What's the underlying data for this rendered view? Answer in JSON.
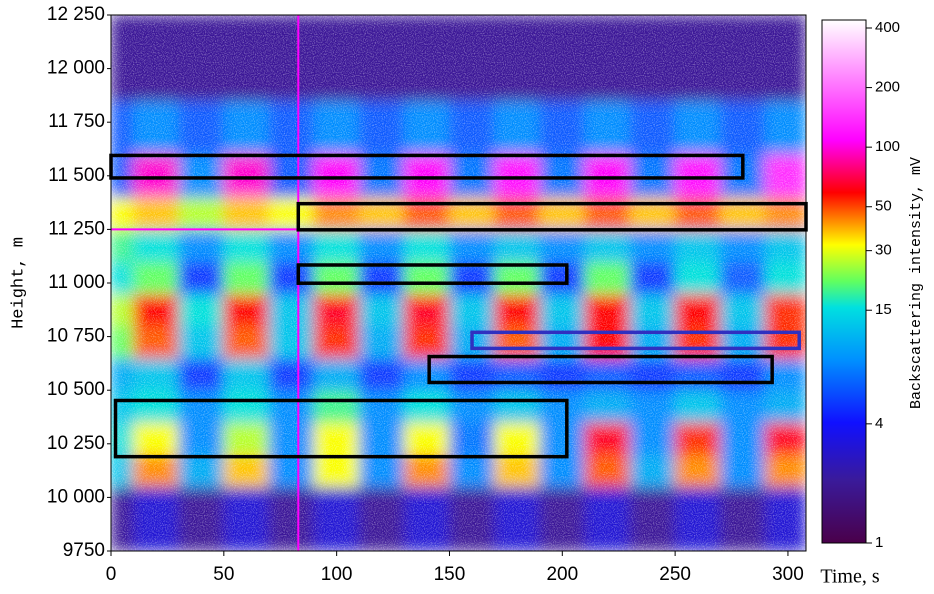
{
  "chart_data": {
    "type": "heatmap",
    "x_label": "Time, s",
    "y_label": "Height, m",
    "colorbar_label": "Backscattering intensity, mV",
    "xlim": [
      0,
      308
    ],
    "ylim": [
      9750,
      12250
    ],
    "xticks": [
      0,
      50,
      100,
      150,
      200,
      250,
      300
    ],
    "yticks": [
      {
        "value": 9750,
        "label": "9750"
      },
      {
        "value": 10000,
        "label": "10 000"
      },
      {
        "value": 10250,
        "label": "10 250"
      },
      {
        "value": 10500,
        "label": "10 500"
      },
      {
        "value": 10750,
        "label": "10 750"
      },
      {
        "value": 11000,
        "label": "11 000"
      },
      {
        "value": 11250,
        "label": "11 250"
      },
      {
        "value": 11500,
        "label": "11 500"
      },
      {
        "value": 11750,
        "label": "11 750"
      },
      {
        "value": 12000,
        "label": "12 000"
      },
      {
        "value": 12250,
        "label": "12 250"
      }
    ],
    "x_bins": [
      0,
      10,
      30,
      50,
      70,
      90,
      110,
      130,
      150,
      170,
      190,
      210,
      230,
      250,
      270,
      290,
      308
    ],
    "y_bins": [
      9750,
      10050,
      10200,
      10350,
      10500,
      10650,
      10800,
      10950,
      11100,
      11250,
      11400,
      11600,
      11850,
      12250
    ],
    "z": [
      [
        2,
        3,
        2,
        3,
        2,
        3,
        2,
        3,
        2,
        3,
        2,
        3,
        2,
        3,
        2,
        3
      ],
      [
        12,
        40,
        10,
        35,
        8,
        30,
        8,
        40,
        8,
        35,
        8,
        45,
        10,
        40,
        8,
        40
      ],
      [
        15,
        30,
        8,
        25,
        8,
        30,
        8,
        30,
        7,
        30,
        8,
        60,
        8,
        50,
        8,
        60
      ],
      [
        12,
        15,
        8,
        15,
        8,
        18,
        8,
        15,
        8,
        12,
        8,
        10,
        8,
        12,
        8,
        10
      ],
      [
        10,
        12,
        5,
        12,
        5,
        10,
        5,
        8,
        5,
        6,
        5,
        6,
        5,
        6,
        5,
        8
      ],
      [
        20,
        45,
        12,
        45,
        12,
        50,
        10,
        50,
        10,
        45,
        10,
        55,
        10,
        50,
        10,
        50
      ],
      [
        25,
        55,
        15,
        55,
        12,
        60,
        12,
        60,
        12,
        55,
        12,
        55,
        12,
        55,
        12,
        50
      ],
      [
        15,
        20,
        5,
        20,
        5,
        20,
        5,
        20,
        5,
        20,
        5,
        20,
        5,
        15,
        6,
        15
      ],
      [
        18,
        15,
        8,
        15,
        8,
        15,
        8,
        15,
        8,
        12,
        8,
        12,
        8,
        12,
        8,
        12
      ],
      [
        30,
        35,
        25,
        35,
        30,
        40,
        35,
        45,
        35,
        45,
        35,
        45,
        35,
        45,
        35,
        40
      ],
      [
        6,
        90,
        8,
        90,
        6,
        100,
        7,
        100,
        7,
        110,
        7,
        100,
        7,
        110,
        7,
        130
      ],
      [
        6,
        8,
        6,
        8,
        6,
        8,
        6,
        8,
        6,
        8,
        6,
        8,
        6,
        8,
        6,
        8
      ],
      [
        2,
        2,
        2,
        2,
        2,
        2,
        2,
        2,
        2,
        2,
        2,
        2,
        2,
        2,
        2,
        2
      ]
    ],
    "log_color_scale": true,
    "colorbar_lim": [
      1,
      400
    ],
    "colorbar_ticks": [
      1,
      4,
      15,
      30,
      50,
      100,
      200,
      400
    ],
    "colorscale": [
      [
        0,
        "#4a004a"
      ],
      [
        0.12,
        "#3a1a9a"
      ],
      [
        0.23,
        "#1010ff"
      ],
      [
        0.35,
        "#0090ff"
      ],
      [
        0.45,
        "#00e0e0"
      ],
      [
        0.5,
        "#60ff60"
      ],
      [
        0.57,
        "#ffff00"
      ],
      [
        0.62,
        "#ff8000"
      ],
      [
        0.67,
        "#ff0000"
      ],
      [
        0.77,
        "#ff00ff"
      ],
      [
        0.9,
        "#ff90ff"
      ],
      [
        1,
        "#ffffff"
      ]
    ],
    "cursor": {
      "x": 83,
      "y": 11250,
      "color": "#ff00ff"
    },
    "boxes": [
      {
        "x": [
          0,
          280
        ],
        "y": [
          11490,
          11595
        ],
        "color": "#000000"
      },
      {
        "x": [
          83,
          308
        ],
        "y": [
          11248,
          11370
        ],
        "color": "#000000"
      },
      {
        "x": [
          83,
          202
        ],
        "y": [
          10999,
          11084
        ],
        "color": "#000000"
      },
      {
        "x": [
          160,
          305
        ],
        "y": [
          10695,
          10770
        ],
        "color": "#3030c0"
      },
      {
        "x": [
          141,
          293
        ],
        "y": [
          10536,
          10657
        ],
        "color": "#000000"
      },
      {
        "x": [
          2,
          202
        ],
        "y": [
          10190,
          10452
        ],
        "color": "#000000"
      }
    ]
  }
}
